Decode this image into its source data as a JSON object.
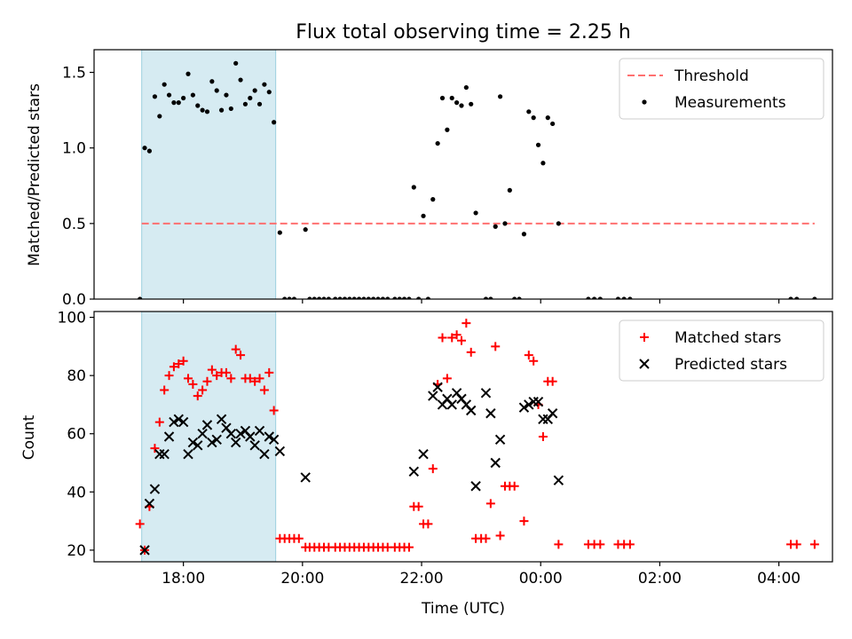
{
  "chart_data": [
    {
      "type": "scatter",
      "panel": "top",
      "title": "Flux total observing time = 2.25 h",
      "ylabel": "Matched/Predicted stars",
      "xlabel": "",
      "xlim": [
        16.5,
        28.9
      ],
      "ylim": [
        0,
        1.65
      ],
      "xtick_positions": [
        18,
        20,
        22,
        24,
        26,
        28
      ],
      "yticks": [
        0.0,
        0.5,
        1.0,
        1.5
      ],
      "ytick_labels": [
        "0.0",
        "0.5",
        "1.0",
        "1.5"
      ],
      "shaded_span": [
        17.3,
        19.55
      ],
      "threshold": {
        "label": "Threshold",
        "value": 0.5,
        "x_range": [
          17.3,
          28.6
        ],
        "color": "#ff7070"
      },
      "legend_position": "upper right",
      "series": [
        {
          "name": "Measurements",
          "color": "#000000",
          "points": [
            [
              17.27,
              0.0
            ],
            [
              17.35,
              1.0
            ],
            [
              17.43,
              0.98
            ],
            [
              17.52,
              1.34
            ],
            [
              17.6,
              1.21
            ],
            [
              17.68,
              1.42
            ],
            [
              17.76,
              1.35
            ],
            [
              17.84,
              1.3
            ],
            [
              17.92,
              1.3
            ],
            [
              18.0,
              1.33
            ],
            [
              18.08,
              1.49
            ],
            [
              18.16,
              1.35
            ],
            [
              18.24,
              1.28
            ],
            [
              18.32,
              1.25
            ],
            [
              18.4,
              1.24
            ],
            [
              18.48,
              1.44
            ],
            [
              18.56,
              1.38
            ],
            [
              18.64,
              1.25
            ],
            [
              18.72,
              1.35
            ],
            [
              18.8,
              1.26
            ],
            [
              18.88,
              1.56
            ],
            [
              18.96,
              1.45
            ],
            [
              19.04,
              1.29
            ],
            [
              19.12,
              1.33
            ],
            [
              19.2,
              1.38
            ],
            [
              19.28,
              1.29
            ],
            [
              19.36,
              1.42
            ],
            [
              19.44,
              1.37
            ],
            [
              19.52,
              1.17
            ],
            [
              19.62,
              0.44
            ],
            [
              19.7,
              0.0
            ],
            [
              19.78,
              0.0
            ],
            [
              19.86,
              0.0
            ],
            [
              20.05,
              0.46
            ],
            [
              20.12,
              0.0
            ],
            [
              20.2,
              0.0
            ],
            [
              20.28,
              0.0
            ],
            [
              20.36,
              0.0
            ],
            [
              20.44,
              0.0
            ],
            [
              20.55,
              0.0
            ],
            [
              20.63,
              0.0
            ],
            [
              20.71,
              0.0
            ],
            [
              20.79,
              0.0
            ],
            [
              20.87,
              0.0
            ],
            [
              20.95,
              0.0
            ],
            [
              21.03,
              0.0
            ],
            [
              21.11,
              0.0
            ],
            [
              21.19,
              0.0
            ],
            [
              21.27,
              0.0
            ],
            [
              21.35,
              0.0
            ],
            [
              21.43,
              0.0
            ],
            [
              21.55,
              0.0
            ],
            [
              21.63,
              0.0
            ],
            [
              21.71,
              0.0
            ],
            [
              21.79,
              0.0
            ],
            [
              21.87,
              0.74
            ],
            [
              21.95,
              0.0
            ],
            [
              22.03,
              0.55
            ],
            [
              22.11,
              0.0
            ],
            [
              22.19,
              0.66
            ],
            [
              22.27,
              1.03
            ],
            [
              22.35,
              1.33
            ],
            [
              22.43,
              1.12
            ],
            [
              22.51,
              1.33
            ],
            [
              22.59,
              1.3
            ],
            [
              22.67,
              1.28
            ],
            [
              22.75,
              1.4
            ],
            [
              22.83,
              1.29
            ],
            [
              22.91,
              0.57
            ],
            [
              23.08,
              0.0
            ],
            [
              23.16,
              0.0
            ],
            [
              23.24,
              0.48
            ],
            [
              23.32,
              1.34
            ],
            [
              23.4,
              0.5
            ],
            [
              23.48,
              0.72
            ],
            [
              23.56,
              0.0
            ],
            [
              23.64,
              0.0
            ],
            [
              23.72,
              0.43
            ],
            [
              23.8,
              1.24
            ],
            [
              23.88,
              1.2
            ],
            [
              23.96,
              1.02
            ],
            [
              24.04,
              0.9
            ],
            [
              24.12,
              1.2
            ],
            [
              24.2,
              1.16
            ],
            [
              24.3,
              0.5
            ],
            [
              24.8,
              0.0
            ],
            [
              24.9,
              0.0
            ],
            [
              25.0,
              0.0
            ],
            [
              25.3,
              0.0
            ],
            [
              25.4,
              0.0
            ],
            [
              25.5,
              0.0
            ],
            [
              28.2,
              0.0
            ],
            [
              28.3,
              0.0
            ],
            [
              28.6,
              0.0
            ]
          ]
        }
      ]
    },
    {
      "type": "scatter",
      "panel": "bottom",
      "title": "",
      "ylabel": "Count",
      "xlabel": "Time (UTC)",
      "xlim": [
        16.5,
        28.9
      ],
      "ylim": [
        16,
        102
      ],
      "xtick_positions": [
        18,
        20,
        22,
        24,
        26,
        28
      ],
      "xtick_labels": [
        "18:00",
        "20:00",
        "22:00",
        "00:00",
        "02:00",
        "04:00"
      ],
      "yticks": [
        20,
        40,
        60,
        80,
        100
      ],
      "ytick_labels": [
        "20",
        "40",
        "60",
        "80",
        "100"
      ],
      "shaded_span": [
        17.3,
        19.55
      ],
      "legend_position": "upper right",
      "series": [
        {
          "name": "Matched stars",
          "marker": "plus",
          "color": "#ff0000",
          "points": [
            [
              17.27,
              29
            ],
            [
              17.35,
              20
            ],
            [
              17.43,
              35
            ],
            [
              17.52,
              55
            ],
            [
              17.6,
              64
            ],
            [
              17.68,
              75
            ],
            [
              17.76,
              80
            ],
            [
              17.84,
              83
            ],
            [
              17.92,
              84
            ],
            [
              18.0,
              85
            ],
            [
              18.08,
              79
            ],
            [
              18.16,
              77
            ],
            [
              18.24,
              73
            ],
            [
              18.32,
              75
            ],
            [
              18.4,
              78
            ],
            [
              18.48,
              82
            ],
            [
              18.56,
              80
            ],
            [
              18.64,
              81
            ],
            [
              18.72,
              81
            ],
            [
              18.8,
              79
            ],
            [
              18.88,
              89
            ],
            [
              18.96,
              87
            ],
            [
              19.04,
              79
            ],
            [
              19.12,
              79
            ],
            [
              19.2,
              78
            ],
            [
              19.28,
              79
            ],
            [
              19.36,
              75
            ],
            [
              19.44,
              81
            ],
            [
              19.52,
              68
            ],
            [
              19.62,
              24
            ],
            [
              19.7,
              24
            ],
            [
              19.78,
              24
            ],
            [
              19.86,
              24
            ],
            [
              19.94,
              24
            ],
            [
              20.05,
              21
            ],
            [
              20.12,
              21
            ],
            [
              20.2,
              21
            ],
            [
              20.28,
              21
            ],
            [
              20.36,
              21
            ],
            [
              20.44,
              21
            ],
            [
              20.55,
              21
            ],
            [
              20.63,
              21
            ],
            [
              20.71,
              21
            ],
            [
              20.79,
              21
            ],
            [
              20.87,
              21
            ],
            [
              20.95,
              21
            ],
            [
              21.03,
              21
            ],
            [
              21.11,
              21
            ],
            [
              21.19,
              21
            ],
            [
              21.27,
              21
            ],
            [
              21.35,
              21
            ],
            [
              21.43,
              21
            ],
            [
              21.55,
              21
            ],
            [
              21.63,
              21
            ],
            [
              21.71,
              21
            ],
            [
              21.79,
              21
            ],
            [
              21.87,
              35
            ],
            [
              21.95,
              35
            ],
            [
              22.03,
              29
            ],
            [
              22.11,
              29
            ],
            [
              22.19,
              48
            ],
            [
              22.27,
              77
            ],
            [
              22.35,
              93
            ],
            [
              22.43,
              79
            ],
            [
              22.51,
              93
            ],
            [
              22.59,
              94
            ],
            [
              22.67,
              92
            ],
            [
              22.75,
              98
            ],
            [
              22.83,
              88
            ],
            [
              22.91,
              24
            ],
            [
              23.0,
              24
            ],
            [
              23.08,
              24
            ],
            [
              23.16,
              36
            ],
            [
              23.24,
              90
            ],
            [
              23.32,
              25
            ],
            [
              23.4,
              42
            ],
            [
              23.48,
              42
            ],
            [
              23.56,
              42
            ],
            [
              23.72,
              30
            ],
            [
              23.8,
              87
            ],
            [
              23.88,
              85
            ],
            [
              23.96,
              70
            ],
            [
              24.04,
              59
            ],
            [
              24.12,
              78
            ],
            [
              24.2,
              78
            ],
            [
              24.3,
              22
            ],
            [
              24.8,
              22
            ],
            [
              24.9,
              22
            ],
            [
              25.0,
              22
            ],
            [
              25.3,
              22
            ],
            [
              25.4,
              22
            ],
            [
              25.5,
              22
            ],
            [
              28.2,
              22
            ],
            [
              28.3,
              22
            ],
            [
              28.6,
              22
            ]
          ]
        },
        {
          "name": "Predicted stars",
          "marker": "x",
          "color": "#000000",
          "points": [
            [
              17.35,
              20
            ],
            [
              17.43,
              36
            ],
            [
              17.52,
              41
            ],
            [
              17.6,
              53
            ],
            [
              17.68,
              53
            ],
            [
              17.76,
              59
            ],
            [
              17.84,
              64
            ],
            [
              17.92,
              65
            ],
            [
              18.0,
              64
            ],
            [
              18.08,
              53
            ],
            [
              18.16,
              57
            ],
            [
              18.24,
              56
            ],
            [
              18.32,
              60
            ],
            [
              18.4,
              63
            ],
            [
              18.48,
              57
            ],
            [
              18.56,
              58
            ],
            [
              18.64,
              65
            ],
            [
              18.72,
              62
            ],
            [
              18.8,
              60
            ],
            [
              18.88,
              57
            ],
            [
              18.96,
              60
            ],
            [
              19.04,
              61
            ],
            [
              19.12,
              59
            ],
            [
              19.2,
              56
            ],
            [
              19.28,
              61
            ],
            [
              19.36,
              53
            ],
            [
              19.44,
              59
            ],
            [
              19.52,
              58
            ],
            [
              19.62,
              54
            ],
            [
              20.05,
              45
            ],
            [
              21.87,
              47
            ],
            [
              22.03,
              53
            ],
            [
              22.19,
              73
            ],
            [
              22.27,
              76
            ],
            [
              22.35,
              70
            ],
            [
              22.43,
              72
            ],
            [
              22.51,
              70
            ],
            [
              22.59,
              74
            ],
            [
              22.67,
              72
            ],
            [
              22.75,
              70
            ],
            [
              22.83,
              68
            ],
            [
              22.91,
              42
            ],
            [
              23.08,
              74
            ],
            [
              23.16,
              67
            ],
            [
              23.24,
              50
            ],
            [
              23.32,
              58
            ],
            [
              23.72,
              69
            ],
            [
              23.8,
              70
            ],
            [
              23.88,
              71
            ],
            [
              23.96,
              71
            ],
            [
              24.04,
              65
            ],
            [
              24.12,
              65
            ],
            [
              24.2,
              67
            ],
            [
              24.3,
              44
            ]
          ]
        }
      ]
    }
  ]
}
